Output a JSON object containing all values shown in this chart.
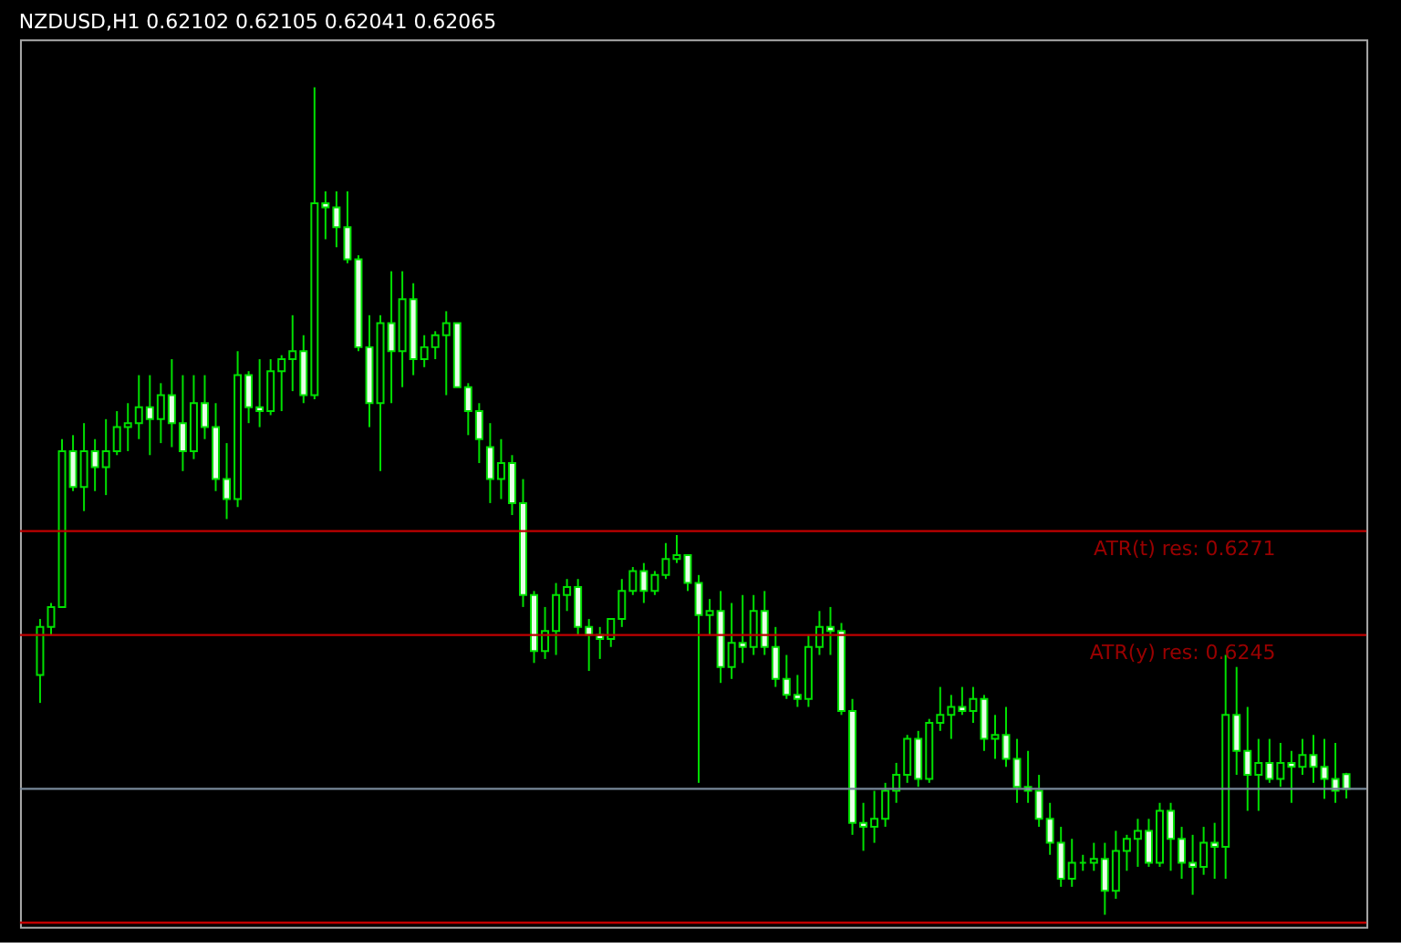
{
  "chart_data": {
    "type": "candlestick",
    "title": "NZDUSD,H1  0.62102 0.62105 0.62041 0.62065",
    "categories": [
      null,
      null,
      null,
      null,
      null,
      null,
      null,
      null,
      null,
      null,
      null,
      null,
      null,
      null,
      null,
      null,
      null,
      null,
      null,
      null,
      null,
      null,
      null,
      null,
      null,
      null,
      null,
      null,
      null,
      null,
      null,
      null,
      null,
      null,
      null,
      null,
      null,
      null,
      null,
      null,
      null,
      null,
      null,
      null,
      null,
      null,
      null,
      null,
      null,
      null,
      null,
      null,
      null,
      null,
      null,
      null,
      null,
      null,
      null,
      null,
      null,
      null,
      null,
      null,
      null,
      null,
      null,
      null,
      null,
      null,
      null,
      null,
      null,
      null,
      null,
      null,
      null,
      null,
      null,
      null,
      null,
      null,
      null,
      null,
      null,
      null,
      null,
      null,
      null,
      null,
      null,
      null,
      null,
      null,
      null,
      null,
      null,
      null,
      null,
      null,
      null,
      null,
      null,
      null,
      null,
      null,
      null,
      null,
      null,
      null,
      null,
      null,
      null,
      null,
      null,
      null,
      null,
      null,
      null,
      null
    ],
    "ohlc": [
      [
        0.6235,
        0.6249,
        0.6228,
        0.6247
      ],
      [
        0.6247,
        0.6253,
        0.6245,
        0.6252
      ],
      [
        0.6252,
        0.6294,
        0.6252,
        0.6291
      ],
      [
        0.6291,
        0.6295,
        0.6281,
        0.6282
      ],
      [
        0.6282,
        0.6298,
        0.6276,
        0.6291
      ],
      [
        0.6291,
        0.6294,
        0.6281,
        0.6287
      ],
      [
        0.6287,
        0.6299,
        0.628,
        0.6291
      ],
      [
        0.6291,
        0.6301,
        0.629,
        0.6297
      ],
      [
        0.6297,
        0.6303,
        0.6291,
        0.6298
      ],
      [
        0.6298,
        0.631,
        0.6294,
        0.6302
      ],
      [
        0.6302,
        0.631,
        0.629,
        0.6299
      ],
      [
        0.6299,
        0.6308,
        0.6293,
        0.6305
      ],
      [
        0.6305,
        0.6314,
        0.6292,
        0.6298
      ],
      [
        0.6298,
        0.631,
        0.6286,
        0.6291
      ],
      [
        0.6291,
        0.631,
        0.6289,
        0.6303
      ],
      [
        0.6303,
        0.631,
        0.6294,
        0.6297
      ],
      [
        0.6297,
        0.6303,
        0.6281,
        0.6284
      ],
      [
        0.6284,
        0.6293,
        0.6274,
        0.6279
      ],
      [
        0.6279,
        0.6316,
        0.6277,
        0.631
      ],
      [
        0.631,
        0.6311,
        0.6298,
        0.6302
      ],
      [
        0.6302,
        0.6314,
        0.6297,
        0.6301
      ],
      [
        0.6301,
        0.6314,
        0.63,
        0.6311
      ],
      [
        0.6311,
        0.6315,
        0.6301,
        0.6314
      ],
      [
        0.6314,
        0.6325,
        0.6306,
        0.6316
      ],
      [
        0.6316,
        0.632,
        0.6303,
        0.6305
      ],
      [
        0.6305,
        0.6382,
        0.6304,
        0.6353
      ],
      [
        0.6353,
        0.6356,
        0.6344,
        0.6352
      ],
      [
        0.6352,
        0.6356,
        0.6342,
        0.6347
      ],
      [
        0.6347,
        0.6356,
        0.6338,
        0.6339
      ],
      [
        0.6339,
        0.634,
        0.6316,
        0.6317
      ],
      [
        0.6317,
        0.6325,
        0.6297,
        0.6303
      ],
      [
        0.6303,
        0.6325,
        0.6286,
        0.6323
      ],
      [
        0.6323,
        0.6336,
        0.6303,
        0.6316
      ],
      [
        0.6316,
        0.6336,
        0.6307,
        0.6329
      ],
      [
        0.6329,
        0.6333,
        0.631,
        0.6314
      ],
      [
        0.6314,
        0.632,
        0.6312,
        0.6317
      ],
      [
        0.6317,
        0.6321,
        0.6314,
        0.632
      ],
      [
        0.632,
        0.6326,
        0.6305,
        0.6323
      ],
      [
        0.6323,
        0.6323,
        0.6307,
        0.6307
      ],
      [
        0.6307,
        0.6308,
        0.6295,
        0.6301
      ],
      [
        0.6301,
        0.6303,
        0.6288,
        0.6294
      ],
      [
        0.6292,
        0.6298,
        0.6278,
        0.6284
      ],
      [
        0.6284,
        0.6294,
        0.6279,
        0.6288
      ],
      [
        0.6288,
        0.629,
        0.6275,
        0.6278
      ],
      [
        0.6278,
        0.6284,
        0.6252,
        0.6255
      ],
      [
        0.6255,
        0.6256,
        0.6238,
        0.6241
      ],
      [
        0.6241,
        0.6252,
        0.6239,
        0.6246
      ],
      [
        0.6246,
        0.6258,
        0.624,
        0.6255
      ],
      [
        0.6255,
        0.6259,
        0.6251,
        0.6257
      ],
      [
        0.6257,
        0.6259,
        0.6245,
        0.6247
      ],
      [
        0.6247,
        0.6249,
        0.6236,
        0.6245
      ],
      [
        0.6245,
        0.6247,
        0.6239,
        0.6244
      ],
      [
        0.6244,
        0.6249,
        0.6242,
        0.6249
      ],
      [
        0.6249,
        0.6259,
        0.6247,
        0.6256
      ],
      [
        0.6256,
        0.6262,
        0.6255,
        0.6261
      ],
      [
        0.6261,
        0.6263,
        0.6253,
        0.6256
      ],
      [
        0.6256,
        0.6261,
        0.6255,
        0.626
      ],
      [
        0.626,
        0.6268,
        0.6259,
        0.6264
      ],
      [
        0.6264,
        0.627,
        0.6263,
        0.6265
      ],
      [
        0.6265,
        0.6265,
        0.6256,
        0.6258
      ],
      [
        0.6258,
        0.626,
        0.6208,
        0.625
      ],
      [
        0.625,
        0.6254,
        0.6245,
        0.6251
      ],
      [
        0.6251,
        0.6256,
        0.6233,
        0.6237
      ],
      [
        0.6237,
        0.6253,
        0.6234,
        0.6243
      ],
      [
        0.6243,
        0.6255,
        0.6238,
        0.6242
      ],
      [
        0.6242,
        0.6255,
        0.624,
        0.6251
      ],
      [
        0.6251,
        0.6256,
        0.624,
        0.6242
      ],
      [
        0.6242,
        0.6247,
        0.6232,
        0.6234
      ],
      [
        0.6234,
        0.624,
        0.6229,
        0.623
      ],
      [
        0.623,
        0.6235,
        0.6227,
        0.6229
      ],
      [
        0.6229,
        0.6245,
        0.6227,
        0.6242
      ],
      [
        0.6242,
        0.6251,
        0.624,
        0.6247
      ],
      [
        0.6247,
        0.6252,
        0.624,
        0.6246
      ],
      [
        0.6246,
        0.6248,
        0.6225,
        0.6226
      ],
      [
        0.6226,
        0.6229,
        0.6195,
        0.6198
      ],
      [
        0.6198,
        0.6203,
        0.6191,
        0.6197
      ],
      [
        0.6197,
        0.6206,
        0.6193,
        0.6199
      ],
      [
        0.6199,
        0.6208,
        0.6197,
        0.6206
      ],
      [
        0.6206,
        0.6213,
        0.6203,
        0.621
      ],
      [
        0.621,
        0.622,
        0.6208,
        0.6219
      ],
      [
        0.6219,
        0.6221,
        0.6207,
        0.6209
      ],
      [
        0.6209,
        0.6224,
        0.6208,
        0.6223
      ],
      [
        0.6223,
        0.6232,
        0.6221,
        0.6225
      ],
      [
        0.6225,
        0.623,
        0.6219,
        0.6227
      ],
      [
        0.6227,
        0.6232,
        0.6225,
        0.6226
      ],
      [
        0.6226,
        0.6232,
        0.6223,
        0.6229
      ],
      [
        0.6229,
        0.623,
        0.6216,
        0.6219
      ],
      [
        0.6219,
        0.6225,
        0.6214,
        0.622
      ],
      [
        0.622,
        0.6227,
        0.6212,
        0.6214
      ],
      [
        0.6214,
        0.6219,
        0.6203,
        0.6207
      ],
      [
        0.6207,
        0.6216,
        0.6203,
        0.6206
      ],
      [
        0.6206,
        0.621,
        0.6197,
        0.6199
      ],
      [
        0.6199,
        0.6203,
        0.619,
        0.6193
      ],
      [
        0.6193,
        0.6197,
        0.6182,
        0.6184
      ],
      [
        0.6184,
        0.6194,
        0.6182,
        0.6188
      ],
      [
        0.6188,
        0.619,
        0.6186,
        0.6188
      ],
      [
        0.6188,
        0.6193,
        0.6186,
        0.6189
      ],
      [
        0.6189,
        0.6193,
        0.6175,
        0.6181
      ],
      [
        0.6181,
        0.6196,
        0.6179,
        0.6191
      ],
      [
        0.6191,
        0.6195,
        0.6186,
        0.6194
      ],
      [
        0.6194,
        0.6199,
        0.6187,
        0.6196
      ],
      [
        0.6196,
        0.6199,
        0.6187,
        0.6188
      ],
      [
        0.6188,
        0.6203,
        0.6187,
        0.6201
      ],
      [
        0.6201,
        0.6203,
        0.6186,
        0.6194
      ],
      [
        0.6194,
        0.6197,
        0.6184,
        0.6188
      ],
      [
        0.6188,
        0.6195,
        0.618,
        0.6187
      ],
      [
        0.6187,
        0.6197,
        0.6185,
        0.6193
      ],
      [
        0.6193,
        0.6198,
        0.6184,
        0.6192
      ],
      [
        0.6192,
        0.624,
        0.6184,
        0.6225
      ],
      [
        0.6225,
        0.6237,
        0.621,
        0.6216
      ],
      [
        0.6216,
        0.6227,
        0.6201,
        0.621
      ],
      [
        0.621,
        0.6219,
        0.6201,
        0.6213
      ],
      [
        0.6213,
        0.6219,
        0.6208,
        0.6209
      ],
      [
        0.6209,
        0.6218,
        0.6207,
        0.6213
      ],
      [
        0.6213,
        0.6216,
        0.6203,
        0.6212
      ],
      [
        0.6212,
        0.6219,
        0.621,
        0.6215
      ],
      [
        0.6215,
        0.622,
        0.6208,
        0.6212
      ],
      [
        0.6212,
        0.6219,
        0.6204,
        0.6209
      ],
      [
        0.6209,
        0.6218,
        0.6203,
        0.6206
      ],
      [
        0.62102,
        0.62105,
        0.62041,
        0.62065
      ]
    ],
    "color": "#00e000",
    "ylim": [
      0.6172,
      0.6394
    ],
    "tick_labels": false,
    "grid": false,
    "ref_lines": [
      {
        "axis": "y",
        "value": 0.6271,
        "label": "ATR(t) res: 0.6271",
        "color": "#c00000"
      },
      {
        "axis": "y",
        "value": 0.6245,
        "label": "ATR(y) res: 0.6245",
        "color": "#c00000"
      },
      {
        "axis": "y",
        "value": 0.62065,
        "color": "#778899"
      },
      {
        "axis": "y",
        "value": 0.6173,
        "color": "#c00000"
      }
    ]
  }
}
